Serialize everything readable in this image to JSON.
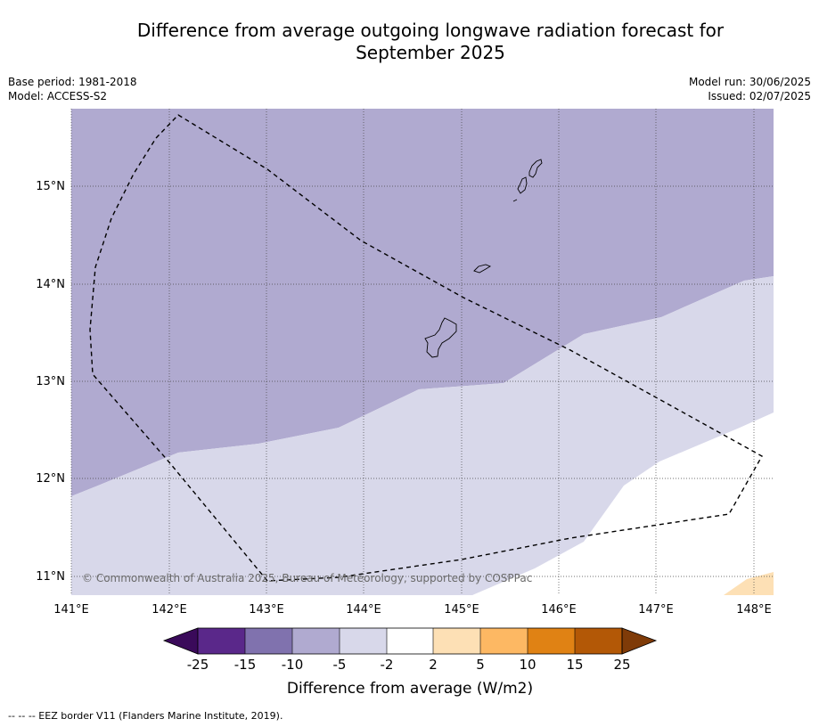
{
  "title_line1": "Difference from average outgoing longwave radiation forecast for",
  "title_line2": "September 2025",
  "meta": {
    "base_period": "Base period: 1981-2018",
    "model": "Model: ACCESS-S2",
    "model_run": "Model run: 30/06/2025",
    "issued": "Issued: 02/07/2025"
  },
  "map": {
    "lon_labels": [
      "141°E",
      "142°E",
      "143°E",
      "144°E",
      "145°E",
      "146°E",
      "147°E",
      "148°E"
    ],
    "lat_labels": [
      "15°N",
      "14°N",
      "13°N",
      "12°N",
      "11°N"
    ],
    "copyright": "© Commonwealth of Australia 2025, Bureau of Meteorology, supported by COSPPac",
    "colors": {
      "neg_10_5": "#b0aad0",
      "neg_5_2": "#d8d8ea",
      "neutral": "#ffffff",
      "pos_2_5": "#fde0b5"
    }
  },
  "colorbar": {
    "ticks": [
      "-25",
      "-15",
      "-10",
      "-5",
      "-2",
      "2",
      "5",
      "10",
      "15",
      "25"
    ],
    "colors": [
      "#3a0a5a",
      "#5a288a",
      "#8072ae",
      "#b0aad0",
      "#d8d8ea",
      "#ffffff",
      "#fde0b5",
      "#fdb863",
      "#e08214",
      "#b35806",
      "#7f3b08"
    ],
    "label": "Difference from average (W/m2)"
  },
  "footer": "--  --  -- EEZ border V11 (Flanders Marine Institute, 2019)."
}
